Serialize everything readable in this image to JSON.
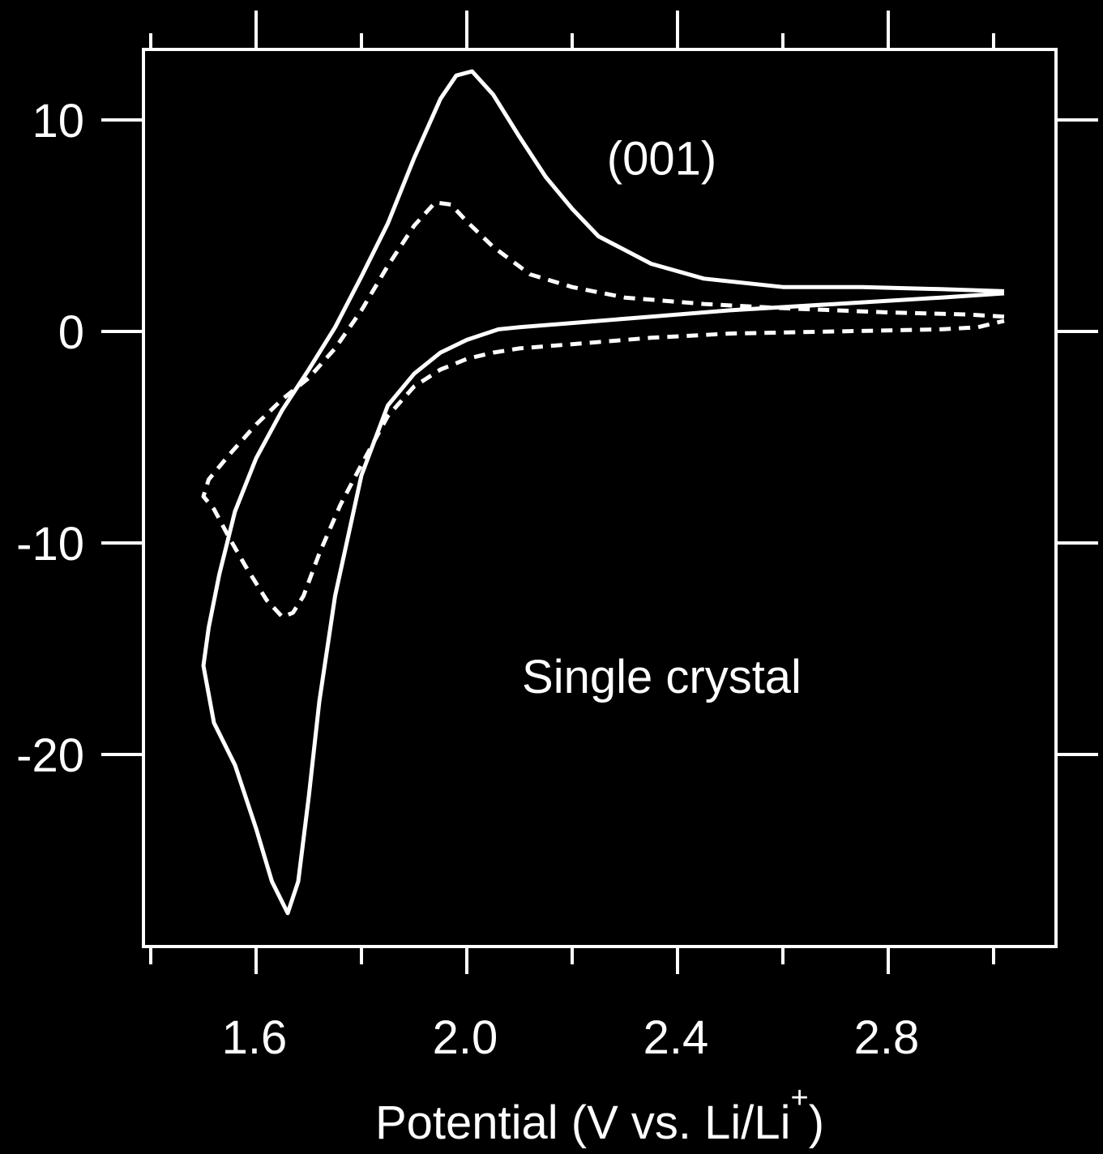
{
  "chart_data": {
    "type": "line",
    "title": "",
    "xlabel": "Potential (V vs. Li/Li",
    "xlabel_superscript": "+",
    "xlabel_close": ")",
    "ylabel": "",
    "xlim": [
      1.37,
      3.21
    ],
    "ylim": [
      -29,
      16
    ],
    "x_ticks": [
      1.6,
      2.0,
      2.4,
      2.8
    ],
    "x_tick_labels": [
      "1.6",
      "2.0",
      "2.4",
      "2.8"
    ],
    "x_minor_ticks": [
      1.4,
      1.8,
      2.2,
      2.6,
      3.0
    ],
    "y_ticks": [
      10,
      0,
      -10,
      -20
    ],
    "y_tick_labels": [
      "10",
      "0",
      "-10",
      "-20"
    ],
    "grid": false,
    "legend": "none",
    "colors": {
      "background": "#000000",
      "foreground": "#ffffff"
    },
    "annotations": [
      {
        "text": "(001)",
        "x": 2.37,
        "y": 8.0
      },
      {
        "text": "Single crystal",
        "x": 2.37,
        "y": -16.5
      }
    ],
    "series": [
      {
        "style": "solid",
        "x": [
          3.02,
          2.9,
          2.75,
          2.6,
          2.45,
          2.35,
          2.25,
          2.2,
          2.15,
          2.1,
          2.05,
          2.01,
          1.98,
          1.95,
          1.9,
          1.85,
          1.8,
          1.75,
          1.7,
          1.65,
          1.6,
          1.56,
          1.53,
          1.51,
          1.5,
          1.52,
          1.56,
          1.6,
          1.63,
          1.66,
          1.68,
          1.7,
          1.72,
          1.75,
          1.8,
          1.85,
          1.9,
          1.95,
          2.0,
          2.06,
          2.1,
          2.2,
          2.35,
          2.5,
          2.7,
          2.9,
          3.02
        ],
        "y": [
          1.9,
          2.0,
          2.1,
          2.1,
          2.5,
          3.2,
          4.5,
          5.8,
          7.3,
          9.2,
          11.2,
          12.3,
          12.1,
          11.0,
          8.2,
          5.1,
          2.6,
          0.2,
          -1.8,
          -3.7,
          -6.0,
          -8.5,
          -11.5,
          -14.0,
          -15.8,
          -18.5,
          -20.5,
          -23.5,
          -26.0,
          -27.5,
          -26.0,
          -22.0,
          -17.5,
          -12.5,
          -6.8,
          -3.5,
          -2.0,
          -1.0,
          -0.4,
          0.1,
          0.2,
          0.4,
          0.7,
          1.0,
          1.3,
          1.6,
          1.8
        ]
      },
      {
        "style": "dashed",
        "x": [
          3.02,
          2.95,
          2.8,
          2.6,
          2.45,
          2.3,
          2.2,
          2.12,
          2.05,
          2.0,
          1.97,
          1.94,
          1.9,
          1.85,
          1.8,
          1.75,
          1.7,
          1.65,
          1.6,
          1.55,
          1.51,
          1.5,
          1.52,
          1.55,
          1.58,
          1.62,
          1.65,
          1.67,
          1.69,
          1.72,
          1.76,
          1.8,
          1.85,
          1.9,
          1.95,
          2.0,
          2.05,
          2.1,
          2.2,
          2.35,
          2.5,
          2.7,
          2.9,
          2.97,
          3.02
        ],
        "y": [
          0.7,
          0.8,
          0.9,
          1.1,
          1.3,
          1.6,
          2.1,
          2.7,
          4.0,
          5.2,
          6.0,
          6.1,
          5.0,
          3.1,
          1.0,
          -0.8,
          -2.2,
          -3.2,
          -4.4,
          -5.8,
          -7.0,
          -7.8,
          -8.4,
          -9.8,
          -11.1,
          -12.7,
          -13.5,
          -13.3,
          -12.5,
          -10.5,
          -8.2,
          -6.3,
          -4.0,
          -2.6,
          -1.8,
          -1.3,
          -1.0,
          -0.8,
          -0.6,
          -0.3,
          -0.1,
          0.0,
          0.1,
          0.2,
          0.5
        ]
      }
    ]
  }
}
